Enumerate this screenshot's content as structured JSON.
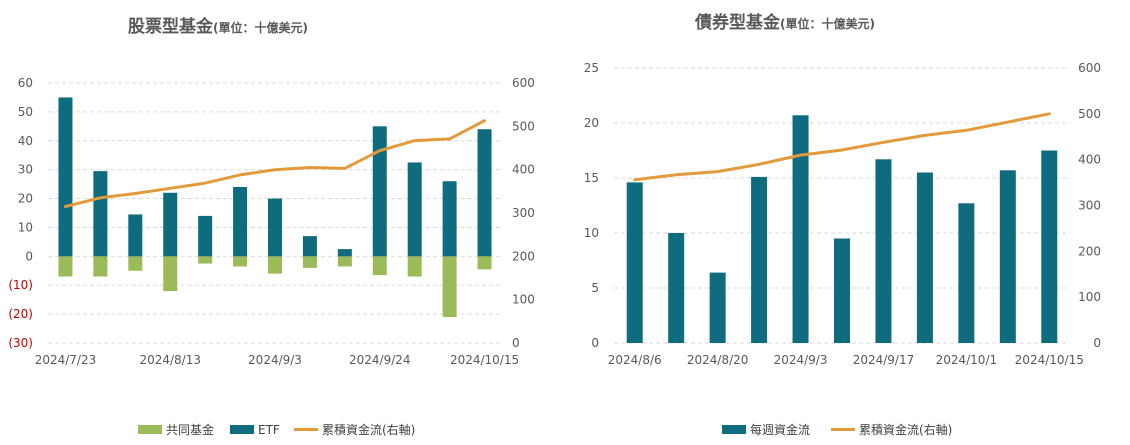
{
  "colors": {
    "etf": "#0f6b7e",
    "mutual_fund": "#9bbb59",
    "weekly_flow": "#0f6b7e",
    "cumulative": "#e39a3b",
    "negative_tick": "#c00000"
  },
  "chart_data": [
    {
      "type": "bar",
      "title": "股票型基金",
      "subtitle": "(單位：十億美元)",
      "xlabel": "",
      "ylabel": "",
      "y_ticks": [
        "60",
        "50",
        "40",
        "30",
        "20",
        "10",
        "0",
        "(10)",
        "(20)",
        "(30)"
      ],
      "y2_ticks": [
        "600",
        "500",
        "400",
        "300",
        "200",
        "100",
        "0"
      ],
      "x_tick_labels": [
        "2024/7/23",
        "2024/8/13",
        "2024/9/3",
        "2024/9/24",
        "2024/10/15"
      ],
      "ylim": [
        -30,
        60
      ],
      "y2lim": [
        0,
        600
      ],
      "grid": true,
      "legend_position": "bottom",
      "categories": [
        "2024/7/23",
        "2024/7/30",
        "2024/8/6",
        "2024/8/13",
        "2024/8/20",
        "2024/8/27",
        "2024/9/3",
        "2024/9/10",
        "2024/9/17",
        "2024/9/24",
        "2024/10/1",
        "2024/10/8",
        "2024/10/15"
      ],
      "series": [
        {
          "name": "共同基金",
          "kind": "bar",
          "axis": "left",
          "values": [
            -7,
            -7,
            -5,
            -12,
            -2.5,
            -3.5,
            -6,
            -4,
            -3.5,
            -6.5,
            -7,
            -21,
            -4.5
          ]
        },
        {
          "name": "ETF",
          "kind": "bar",
          "axis": "left",
          "values": [
            55,
            29.5,
            14.5,
            22,
            14,
            24,
            20,
            7,
            2.5,
            45,
            32.5,
            26,
            44
          ]
        },
        {
          "name": "累積資金流(右軸)",
          "kind": "line",
          "axis": "right",
          "values": [
            315,
            335,
            345,
            357,
            369,
            388,
            400,
            405,
            403,
            444,
            467,
            471,
            513
          ]
        }
      ]
    },
    {
      "type": "bar",
      "title": "債券型基金",
      "subtitle": "(單位：十億美元)",
      "xlabel": "",
      "ylabel": "",
      "y_ticks": [
        "25",
        "20",
        "15",
        "10",
        "5",
        "0"
      ],
      "y2_ticks": [
        "600",
        "500",
        "400",
        "300",
        "200",
        "100",
        "0"
      ],
      "x_tick_labels": [
        "2024/8/6",
        "2024/8/20",
        "2024/9/3",
        "2024/9/17",
        "2024/10/1",
        "2024/10/15"
      ],
      "ylim": [
        0,
        25
      ],
      "y2lim": [
        0,
        600
      ],
      "grid": true,
      "legend_position": "bottom",
      "categories": [
        "2024/8/6",
        "2024/8/13",
        "2024/8/20",
        "2024/8/27",
        "2024/9/3",
        "2024/9/10",
        "2024/9/17",
        "2024/9/24",
        "2024/10/1",
        "2024/10/8",
        "2024/10/15"
      ],
      "series": [
        {
          "name": "每週資金流",
          "kind": "bar",
          "axis": "left",
          "values": [
            14.6,
            10,
            6.4,
            15.1,
            20.7,
            9.5,
            16.7,
            15.5,
            12.7,
            15.7,
            17.5
          ]
        },
        {
          "name": "累積資金流(右軸)",
          "kind": "line",
          "axis": "right",
          "values": [
            356,
            367,
            374,
            390,
            410,
            421,
            438,
            453,
            464,
            482,
            500
          ]
        }
      ]
    }
  ]
}
